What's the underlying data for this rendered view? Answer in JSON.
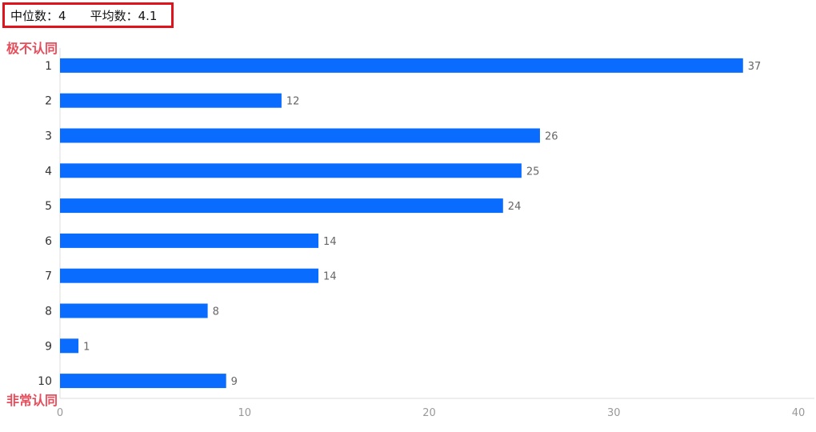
{
  "stats": {
    "median_label": "中位数：",
    "median_value": "4",
    "mean_label": "平均数：",
    "mean_value": "4.1"
  },
  "scale_labels": {
    "top": "极不认同",
    "bottom": "非常认同"
  },
  "colors": {
    "bar": "#0a6cff",
    "highlight_border": "#e0121c",
    "end_label": "#e84d5b",
    "axis_text": "#999999",
    "category_text": "#333333",
    "value_label": "#666666",
    "axis_line": "#dddddd"
  },
  "chart_data": {
    "type": "bar",
    "orientation": "horizontal",
    "categories": [
      "1",
      "2",
      "3",
      "4",
      "5",
      "6",
      "7",
      "8",
      "9",
      "10"
    ],
    "values": [
      37,
      12,
      26,
      25,
      24,
      14,
      14,
      8,
      1,
      9
    ],
    "xlim": [
      0,
      40
    ],
    "xticks": [
      0,
      10,
      20,
      30,
      40
    ],
    "grid": false,
    "data_labels": true
  }
}
